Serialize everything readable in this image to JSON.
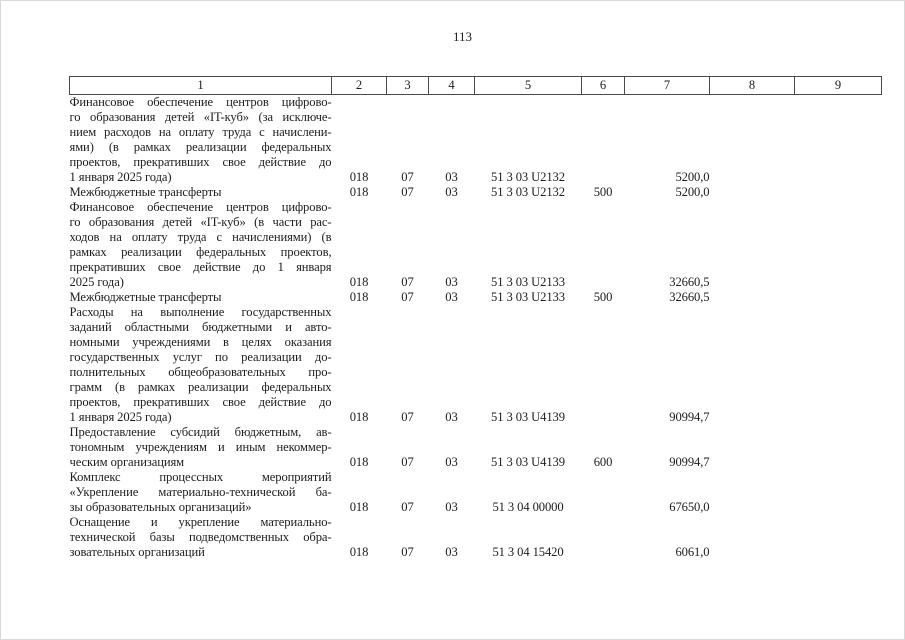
{
  "page": {
    "number": "113",
    "background_color": "#ffffff",
    "text_color": "#1d1d1d",
    "table_border_color": "#4a4a4a"
  },
  "table": {
    "header": [
      "1",
      "2",
      "3",
      "4",
      "5",
      "6",
      "7",
      "8",
      "9"
    ],
    "rows": [
      {
        "lines": [
          "Финансовое обеспечение центров цифрово-",
          "го образования детей «IT-куб» (за исключе-",
          "нием расходов на оплату труда с начислени-",
          "ями) (в рамках реализации федеральных",
          "проектов, прекративших свое действие до",
          "1 января 2025 года)"
        ],
        "col2": "018",
        "col3": "07",
        "col4": "03",
        "col5": "51 3 03 U2132",
        "col6": "",
        "col7": "5200,0",
        "col8": "",
        "col9": ""
      },
      {
        "lines": [
          "Межбюджетные трансферты"
        ],
        "col2": "018",
        "col3": "07",
        "col4": "03",
        "col5": "51 3 03 U2132",
        "col6": "500",
        "col7": "5200,0",
        "col8": "",
        "col9": ""
      },
      {
        "lines": [
          "Финансовое обеспечение центров цифрово-",
          "го образования детей «IT-куб» (в части рас-",
          "ходов на оплату труда с начислениями) (в",
          "рамках реализации федеральных проектов,",
          "прекративших свое действие до 1 января",
          "2025 года)"
        ],
        "col2": "018",
        "col3": "07",
        "col4": "03",
        "col5": "51 3 03 U2133",
        "col6": "",
        "col7": "32660,5",
        "col8": "",
        "col9": ""
      },
      {
        "lines": [
          "Межбюджетные трансферты"
        ],
        "col2": "018",
        "col3": "07",
        "col4": "03",
        "col5": "51 3 03 U2133",
        "col6": "500",
        "col7": "32660,5",
        "col8": "",
        "col9": ""
      },
      {
        "lines": [
          "Расходы на выполнение государственных",
          "заданий областными бюджетными и авто-",
          "номными учреждениями в целях оказания",
          "государственных услуг по реализации до-",
          "полнительных общеобразовательных про-",
          "грамм (в рамках реализации федеральных",
          "проектов, прекративших свое действие до",
          "1 января 2025 года)"
        ],
        "col2": "018",
        "col3": "07",
        "col4": "03",
        "col5": "51 3 03 U4139",
        "col6": "",
        "col7": "90994,7",
        "col8": "",
        "col9": ""
      },
      {
        "lines": [
          "Предоставление субсидий бюджетным, ав-",
          "тономным учреждениям и иным некоммер-",
          "ческим организациям"
        ],
        "col2": "018",
        "col3": "07",
        "col4": "03",
        "col5": "51 3 03 U4139",
        "col6": "600",
        "col7": "90994,7",
        "col8": "",
        "col9": ""
      },
      {
        "lines": [
          "Комплекс процессных мероприятий",
          "«Укрепление материально-технической ба-",
          "зы образовательных организаций»"
        ],
        "col2": "018",
        "col3": "07",
        "col4": "03",
        "col5": "51 3 04 00000",
        "col6": "",
        "col7": "67650,0",
        "col8": "",
        "col9": ""
      },
      {
        "lines": [
          "Оснащение и укрепление материально-",
          "технической базы подведомственных обра-",
          "зовательных организаций"
        ],
        "col2": "018",
        "col3": "07",
        "col4": "03",
        "col5": "51 3 04 15420",
        "col6": "",
        "col7": "6061,0",
        "col8": "",
        "col9": ""
      }
    ]
  }
}
